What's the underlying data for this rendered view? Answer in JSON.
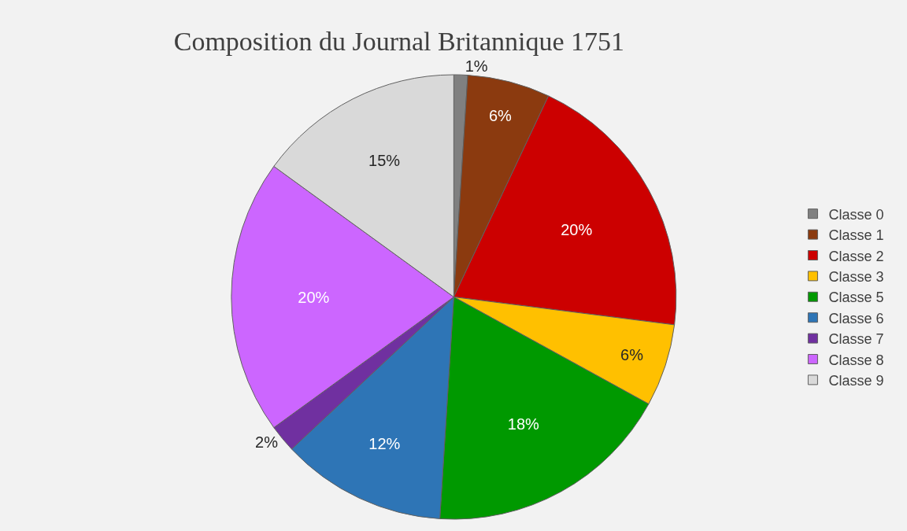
{
  "chart_data": {
    "type": "pie",
    "title": "Composition du Journal Britannique 1751",
    "categories": [
      "Classe 0",
      "Classe 1",
      "Classe 2",
      "Classe 3",
      "Classe 5",
      "Classe 6",
      "Classe 7",
      "Classe 8",
      "Classe 9"
    ],
    "values": [
      1,
      6,
      20,
      6,
      18,
      12,
      2,
      20,
      15
    ],
    "value_labels": [
      "1%",
      "6%",
      "20%",
      "6%",
      "18%",
      "12%",
      "2%",
      "20%",
      "15%"
    ],
    "colors": [
      "#808080",
      "#8b3a0f",
      "#cc0000",
      "#ffc000",
      "#009900",
      "#2e75b6",
      "#7030a0",
      "#cc66ff",
      "#d9d9d9"
    ],
    "legend": "right"
  }
}
